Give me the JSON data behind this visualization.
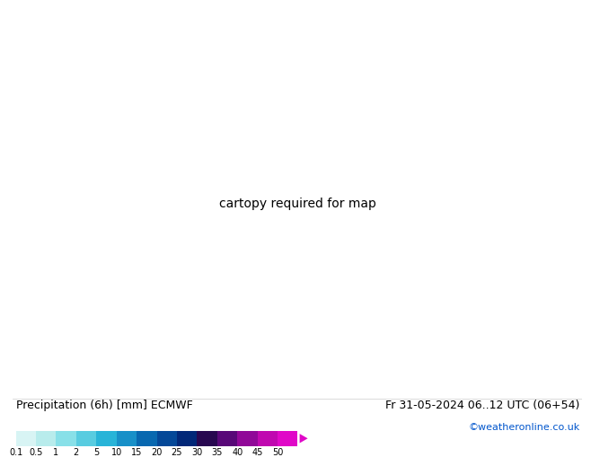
{
  "title_left": "Precipitation (6h) [mm] ECMWF",
  "title_right": "Fr 31-05-2024 06..12 UTC (06+54)",
  "credit": "©weatheronline.co.uk",
  "colorbar_values": [
    0.1,
    0.5,
    1,
    2,
    5,
    10,
    15,
    20,
    25,
    30,
    35,
    40,
    45,
    50
  ],
  "colorbar_colors": [
    "#d8f4f4",
    "#b8ecec",
    "#88e0e8",
    "#58cce0",
    "#28b4d8",
    "#1890c8",
    "#0868b0",
    "#044898",
    "#022878",
    "#280850",
    "#580878",
    "#900898",
    "#c008b0",
    "#e008c8"
  ],
  "ocean_color": "#e8f0f0",
  "land_color": "#d8e8c8",
  "bg_color": "#e8eeee",
  "font_size_title": 9,
  "font_size_credit": 8,
  "font_size_tick": 7,
  "font_size_label": 6,
  "map_extent": [
    -28,
    48,
    27,
    72
  ],
  "isobar_blue_color": "#0000cc",
  "isobar_red_color": "#cc0000"
}
